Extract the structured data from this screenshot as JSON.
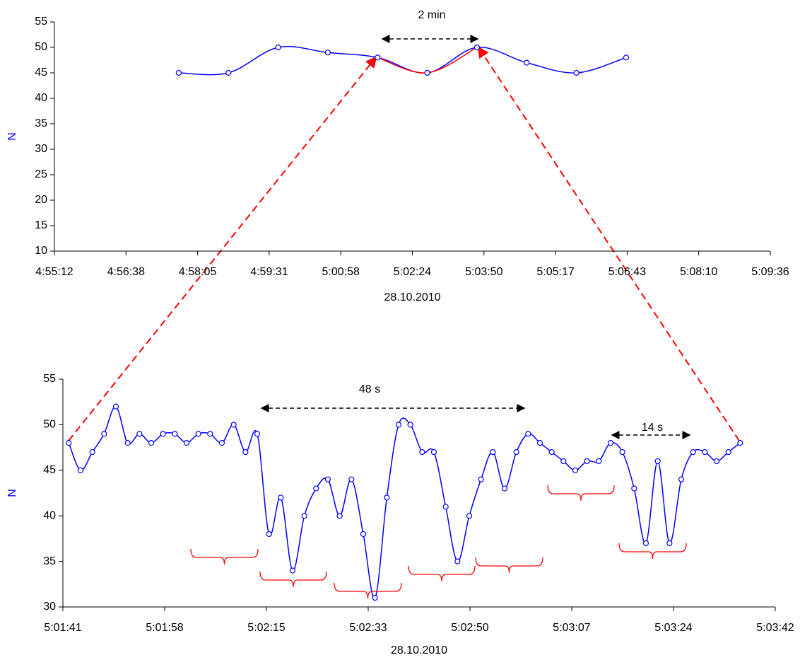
{
  "chart_data": [
    {
      "type": "line",
      "x_label": "28.10.2010",
      "y_label": "N",
      "x": [
        17862,
        17922,
        17982,
        18042,
        18102,
        18162,
        18222,
        18282,
        18342,
        18402
      ],
      "series": [
        {
          "color": "#0000ff",
          "values": [
            45,
            45,
            50,
            49,
            48,
            45,
            50,
            47,
            45,
            48
          ]
        }
      ],
      "highlight_range": [
        4,
        6
      ],
      "highlight_color": "#ff0000",
      "xlim": [
        17712,
        18576
      ],
      "xticks": [
        {
          "value": 17712,
          "label": "4:55:12"
        },
        {
          "value": 17798.4,
          "label": "4:56:38"
        },
        {
          "value": 17884.8,
          "label": "4:58:05"
        },
        {
          "value": 17971.2,
          "label": "4:59:31"
        },
        {
          "value": 18057.6,
          "label": "5:00:58"
        },
        {
          "value": 18144,
          "label": "5:02:24"
        },
        {
          "value": 18230.4,
          "label": "5:03:50"
        },
        {
          "value": 18316.8,
          "label": "5:05:17"
        },
        {
          "value": 18403.2,
          "label": "5:06:43"
        },
        {
          "value": 18489.6,
          "label": "5:08:10"
        },
        {
          "value": 18576,
          "label": "5:09:36"
        }
      ],
      "ylim": [
        10,
        55
      ],
      "yticks": [
        10,
        15,
        20,
        25,
        30,
        35,
        40,
        45,
        50,
        55
      ],
      "annotations": [
        "2 min"
      ]
    },
    {
      "type": "line",
      "x_label": "28.10.2010",
      "y_label": "N",
      "x": [
        18102,
        18104,
        18106,
        18108,
        18110,
        18112,
        18114,
        18116,
        18118,
        18120,
        18122,
        18124,
        18126,
        18128,
        18130,
        18132,
        18134,
        18136,
        18138,
        18140,
        18142,
        18144,
        18146,
        18148,
        18150,
        18152,
        18154,
        18156,
        18158,
        18160,
        18162,
        18164,
        18166,
        18168,
        18170,
        18172,
        18174,
        18176,
        18178,
        18180,
        18182,
        18184,
        18186,
        18188,
        18190,
        18192,
        18194,
        18196,
        18198,
        18200,
        18202,
        18204,
        18206,
        18208,
        18210,
        18212,
        18214,
        18216
      ],
      "series": [
        {
          "color": "#0000ff",
          "values": [
            48,
            45,
            47,
            49,
            52,
            48,
            49,
            48,
            49,
            49,
            48,
            49,
            49,
            48,
            50,
            47,
            49,
            38,
            42,
            34,
            40,
            43,
            44,
            40,
            44,
            38,
            31,
            42,
            50,
            50,
            47,
            47,
            41,
            35,
            40,
            44,
            47,
            43,
            47,
            49,
            48,
            47,
            46,
            45,
            46,
            46,
            48,
            47,
            43,
            37,
            46,
            37,
            44,
            47,
            47,
            46,
            47,
            48
          ]
        }
      ],
      "xlim": [
        18101,
        18221.96
      ],
      "xticks": [
        {
          "value": 18101,
          "label": "5:01:41"
        },
        {
          "value": 18118.28,
          "label": "5:01:58"
        },
        {
          "value": 18135.56,
          "label": "5:02:15"
        },
        {
          "value": 18152.84,
          "label": "5:02:33"
        },
        {
          "value": 18170.12,
          "label": "5:02:50"
        },
        {
          "value": 18187.4,
          "label": "5:03:07"
        },
        {
          "value": 18204.68,
          "label": "5:03:24"
        },
        {
          "value": 18221.96,
          "label": "5:03:42"
        }
      ],
      "ylim": [
        30,
        55
      ],
      "yticks": [
        30,
        35,
        40,
        45,
        50,
        55
      ],
      "annotations": [
        "48 s",
        "14 s"
      ]
    }
  ]
}
